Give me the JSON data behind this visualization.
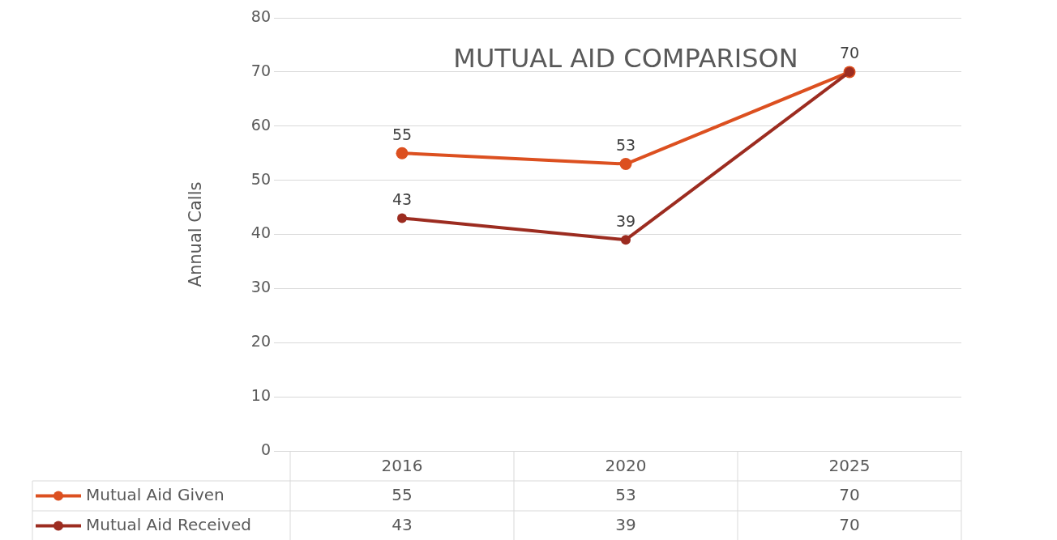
{
  "chart_data": {
    "type": "line",
    "title": "MUTUAL AID COMPARISON",
    "ylabel": "Annual Calls",
    "categories": [
      "2016",
      "2020",
      "2025"
    ],
    "series": [
      {
        "name": "Mutual Aid Given",
        "color": "#dc5020",
        "values": [
          55,
          53,
          70
        ],
        "value_labels": [
          "55",
          "53",
          "70"
        ]
      },
      {
        "name": "Mutual Aid Received",
        "color": "#9c2c20",
        "values": [
          43,
          39,
          70
        ],
        "value_labels": [
          "43",
          "39",
          null
        ]
      }
    ],
    "ylim": [
      0,
      80
    ],
    "yticks": [
      0,
      10,
      20,
      30,
      40,
      50,
      60,
      70,
      80
    ],
    "grid": "y",
    "legend": "bottom",
    "marker": "circle",
    "line_style": "solid",
    "annotations": [
      "55",
      "53",
      "70",
      "43",
      "39",
      "70"
    ]
  }
}
